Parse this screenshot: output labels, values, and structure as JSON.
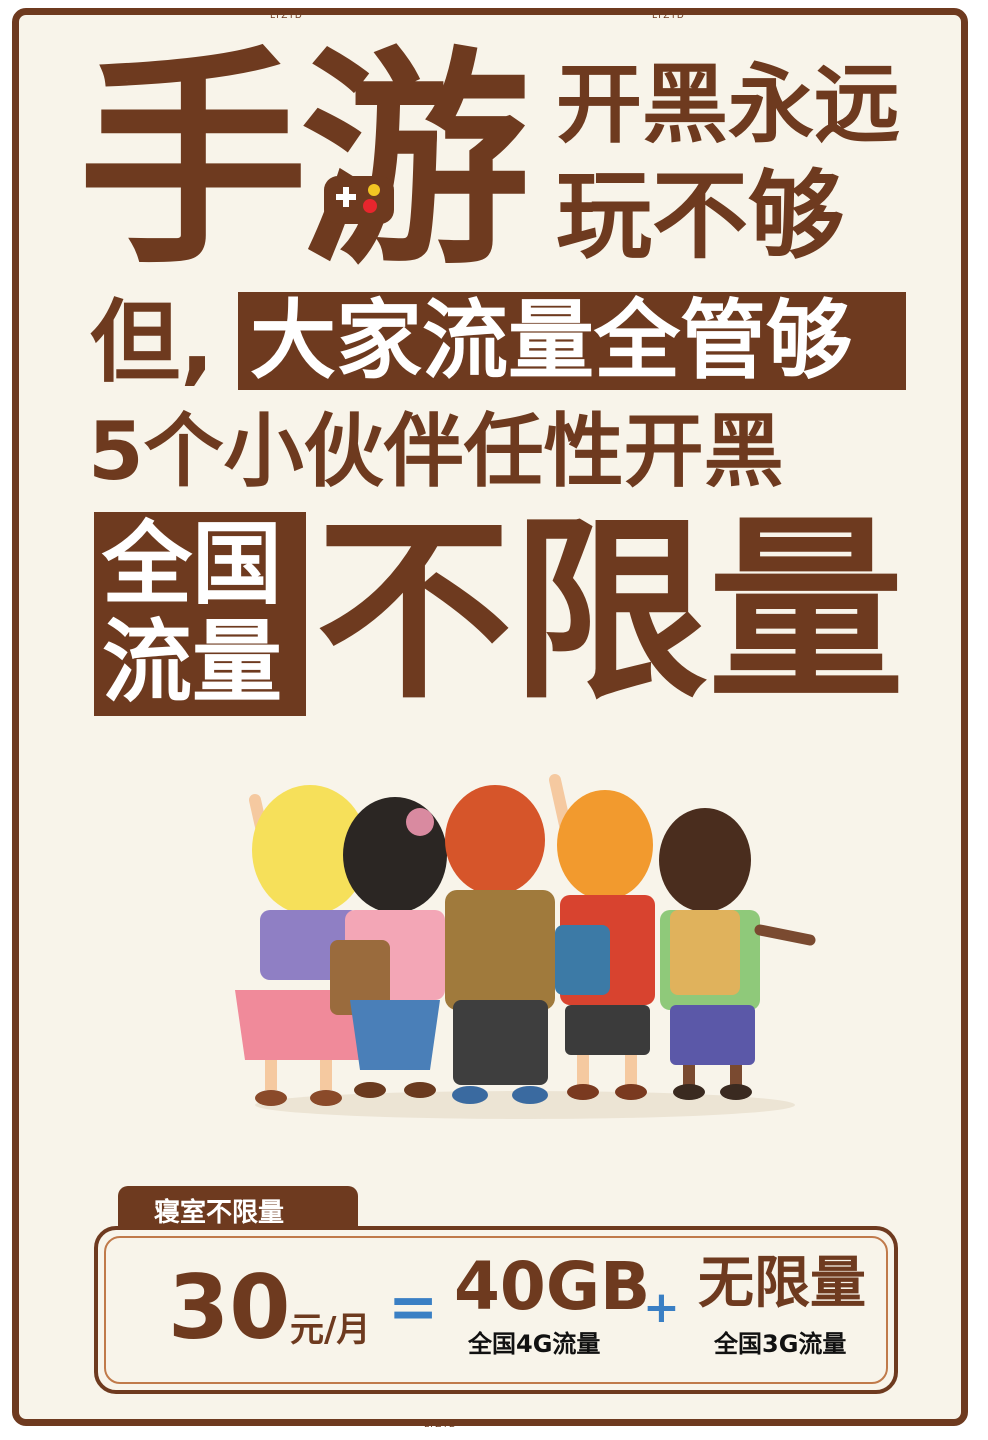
{
  "watermark": "LTZTD",
  "headline": {
    "char1": "手",
    "char2": "游",
    "line1": "开黑永远",
    "line2": "玩不够"
  },
  "subline": {
    "prefix": "但,",
    "highlight": "大家流量全管够"
  },
  "five_friends": "5个小伙伴任性开黑",
  "national": {
    "box_line1": "全国",
    "box_line2": "流量",
    "big": "不限量"
  },
  "plan": {
    "tab_label": "寝室不限量",
    "price": "30",
    "unit": "元/月",
    "equals": "=",
    "data_amount": "40GB",
    "data_sub": "全国4G流量",
    "plus": "+",
    "unlimited": "无限量",
    "unlimited_sub": "全国3G流量"
  },
  "colors": {
    "brown": "#6e3a1f",
    "background": "#f8f4ea",
    "accent_blue": "#3a7fc4"
  }
}
